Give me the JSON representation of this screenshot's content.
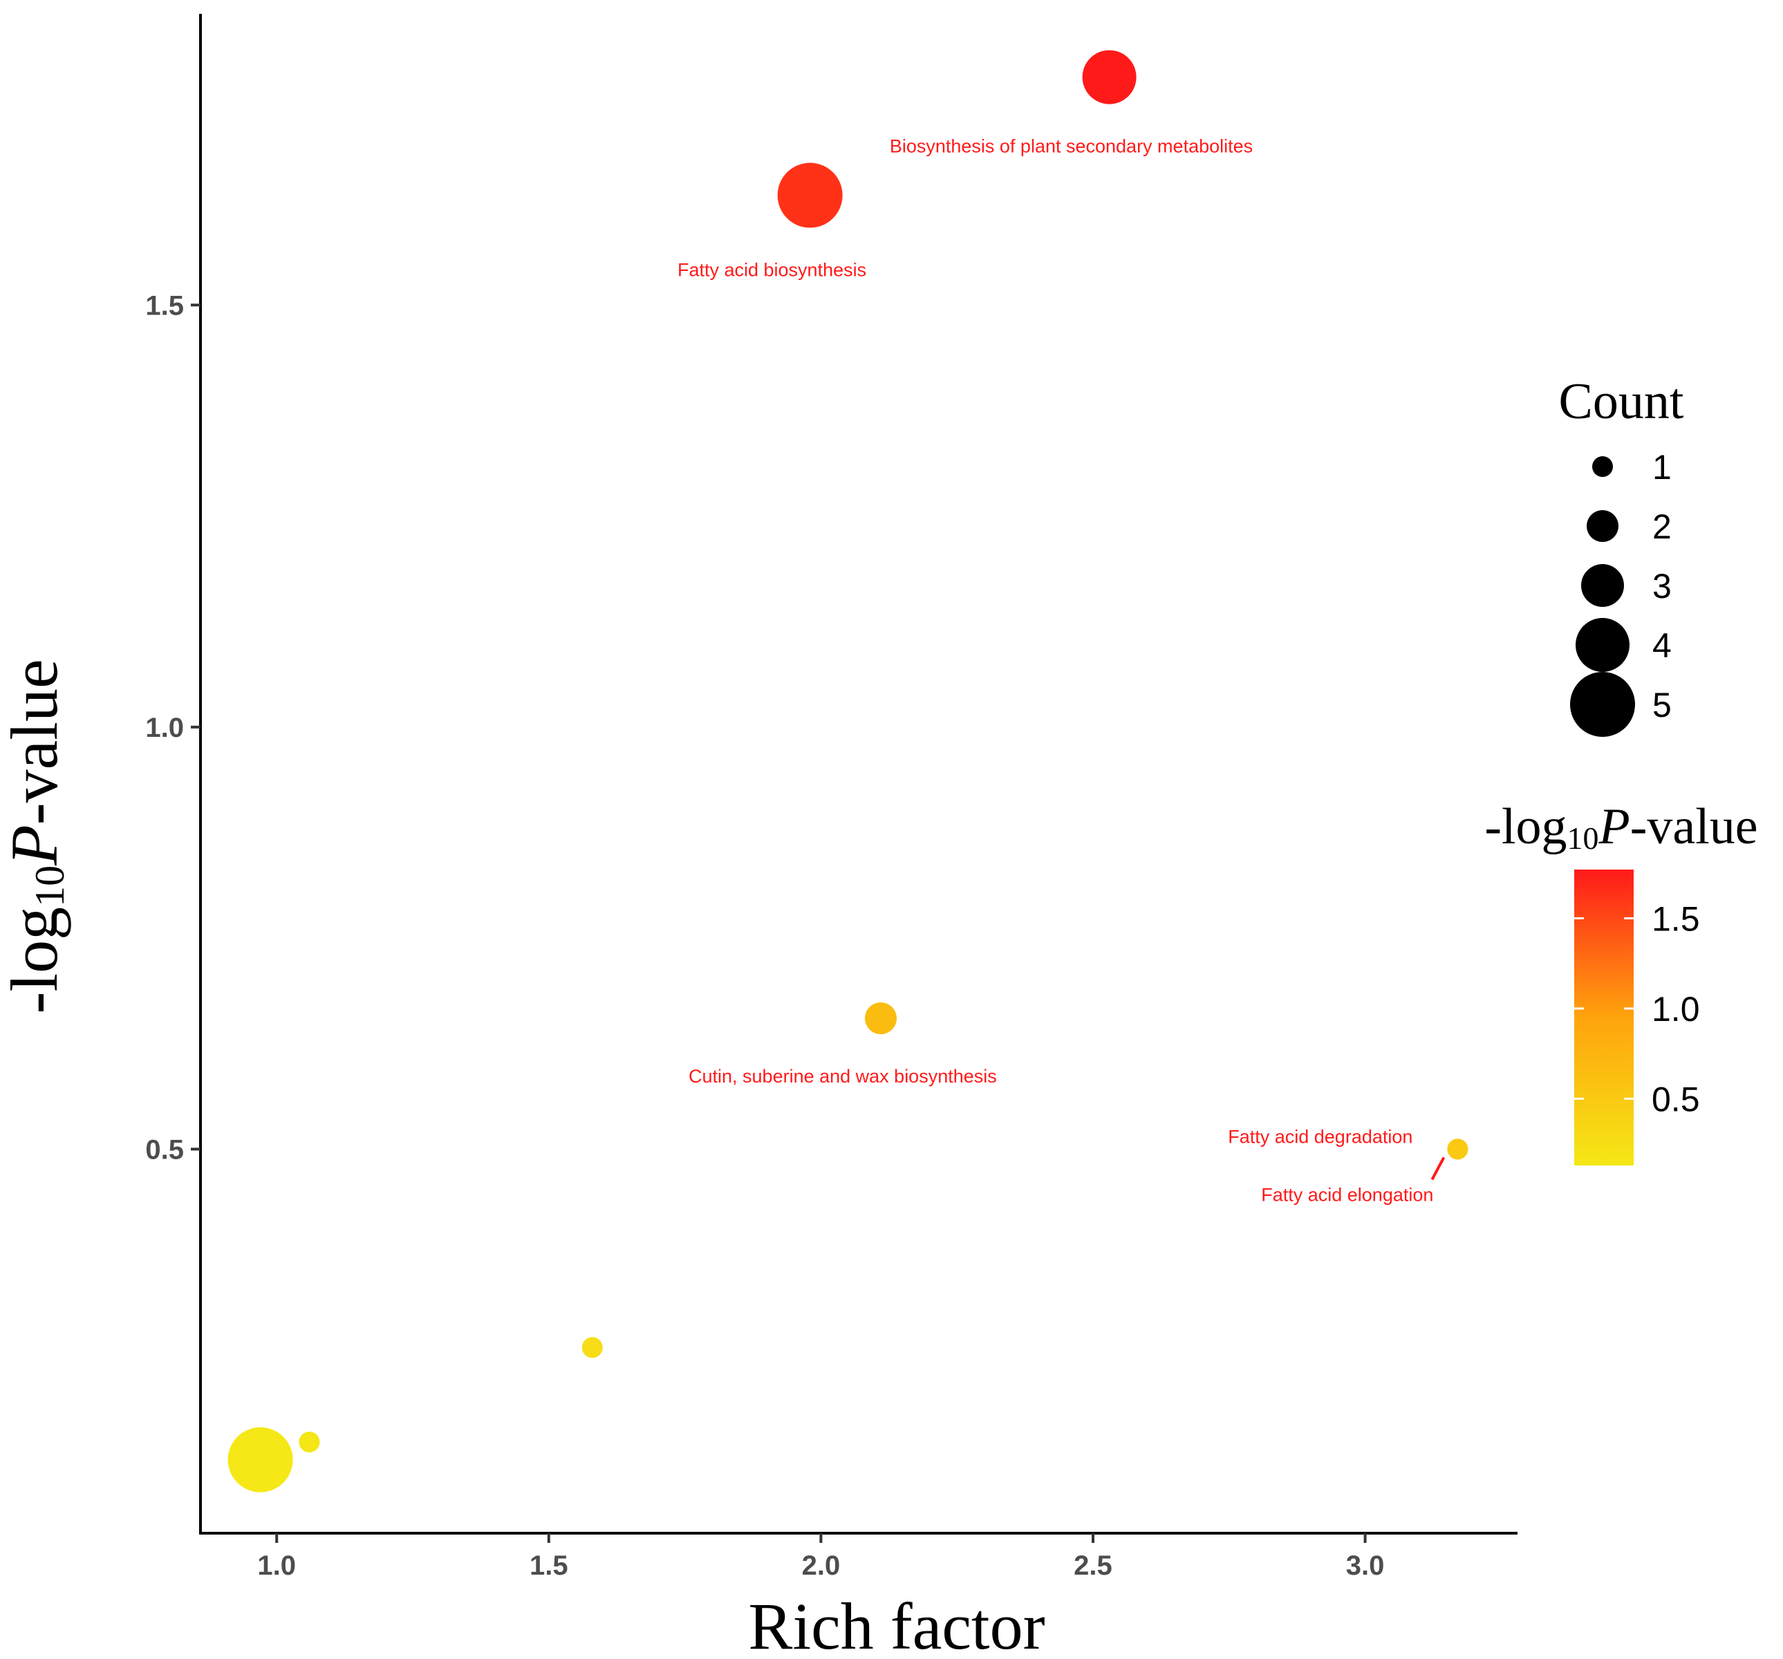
{
  "chart_data": {
    "type": "scatter",
    "x_title": "Rich factor",
    "y_title": {
      "prefix": "-log",
      "subscript": "10",
      "italic": "P",
      "suffix": "-value"
    },
    "xlim": [
      0.86,
      3.28
    ],
    "ylim": [
      0.045,
      1.845
    ],
    "x_ticks": [
      1.0,
      1.5,
      2.0,
      2.5,
      3.0
    ],
    "x_tick_labels": [
      "1.0",
      "1.5",
      "2.0",
      "2.5",
      "3.0"
    ],
    "y_ticks": [
      0.5,
      1.0,
      1.5
    ],
    "y_tick_labels": [
      "0.5",
      "1.0",
      "1.5"
    ],
    "grid": false,
    "label_color": "#ff1a1a",
    "points": [
      {
        "x": 2.53,
        "y": 1.77,
        "count": 4,
        "label": "Biosynthesis of plant secondary metabolites",
        "label_side": "below",
        "label_anchor": "middle",
        "label_dx": -0.07
      },
      {
        "x": 1.98,
        "y": 1.63,
        "count": 5,
        "label": "Fatty acid biosynthesis",
        "label_side": "below",
        "label_anchor": "middle",
        "label_dx": -0.07
      },
      {
        "x": 2.11,
        "y": 0.655,
        "count": 2,
        "label": "Cutin, suberine and wax biosynthesis",
        "label_side": "below",
        "label_anchor": "middle",
        "label_dx": -0.07
      },
      {
        "x": 3.17,
        "y": 0.5,
        "count": 1,
        "label": "Fatty acid degradation",
        "label_side": "left",
        "label_anchor": "end",
        "label_dx": 0
      },
      {
        "x": 3.17,
        "y": 0.5,
        "count": 1,
        "label": "Fatty acid elongation",
        "label_side": "below-left",
        "label_anchor": "end",
        "label_dx": 0
      },
      {
        "x": 1.58,
        "y": 0.265,
        "count": 1,
        "label": "",
        "label_side": "",
        "label_anchor": "",
        "label_dx": 0
      },
      {
        "x": 1.06,
        "y": 0.153,
        "count": 1,
        "label": "",
        "label_side": "",
        "label_anchor": "",
        "label_dx": 0
      },
      {
        "x": 0.97,
        "y": 0.132,
        "count": 5,
        "label": "",
        "label_side": "",
        "label_anchor": "",
        "label_dx": 0
      }
    ],
    "size_legend": {
      "title": "Count",
      "items": [
        {
          "count": 1,
          "label": "1"
        },
        {
          "count": 2,
          "label": "2"
        },
        {
          "count": 3,
          "label": "3"
        },
        {
          "count": 4,
          "label": "4"
        },
        {
          "count": 5,
          "label": "5"
        }
      ]
    },
    "color_legend": {
      "title": {
        "prefix": "-log",
        "subscript": "10",
        "italic": "P",
        "suffix": "-value"
      },
      "min": 0.13,
      "max": 1.77,
      "ticks": [
        0.5,
        1.0,
        1.5
      ],
      "tick_labels": [
        "0.5",
        "1.0",
        "1.5"
      ],
      "colors": [
        "#f5e816",
        "#ffa40d",
        "#ff1a1a"
      ]
    }
  }
}
